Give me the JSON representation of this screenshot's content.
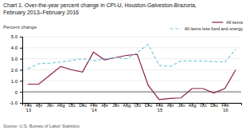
{
  "chart_data": {
    "type": "line",
    "title": "Chart 1. Over-the-year percent change in CPI-U, Houston-Galveston-Brazoria,",
    "subtitle": "February 2013–February 2016",
    "y_label": "Percent change",
    "source": "Source: U.S. Bureau of Labor Statistics",
    "categories": [
      "Feb\n'13",
      "Apr",
      "Jun",
      "Aug",
      "Oct",
      "Dec",
      "Feb\n'14",
      "Apr",
      "Jun",
      "Aug",
      "Oct",
      "Dec",
      "Feb\n'15",
      "Apr",
      "Jun",
      "Aug",
      "Oct",
      "Dec",
      "Feb\n'16",
      null
    ],
    "series": [
      {
        "name": "All items",
        "color": "#8B1A4A",
        "line_style": "solid",
        "values": [
          0.7,
          0.7,
          1.5,
          2.3,
          2.0,
          1.8,
          3.6,
          2.9,
          3.1,
          3.3,
          3.4,
          0.6,
          -0.7,
          -0.6,
          -0.55,
          0.3,
          0.3,
          -0.1,
          0.3,
          2.0
        ]
      },
      {
        "name": "All items less food and energy",
        "color": "#7BC8DC",
        "line_style": "dashed",
        "values": [
          2.1,
          2.55,
          2.6,
          2.7,
          2.85,
          3.0,
          2.8,
          3.0,
          3.1,
          3.0,
          3.55,
          4.3,
          2.4,
          2.3,
          2.8,
          2.8,
          2.8,
          2.75,
          2.7,
          3.85
        ]
      }
    ],
    "ylim": [
      -1.0,
      5.0
    ],
    "yticks": [
      {
        "value": -1.0,
        "label": "-1.0"
      },
      0,
      {
        "value": 1.0,
        "label": "1.0"
      },
      {
        "value": 2.0,
        "label": "2.0"
      },
      {
        "value": 3.0,
        "label": "3.0"
      },
      {
        "value": 4.0,
        "label": "4.0"
      },
      {
        "value": 5.0,
        "label": "5.0"
      }
    ],
    "grid": true,
    "legend": "upper right"
  }
}
